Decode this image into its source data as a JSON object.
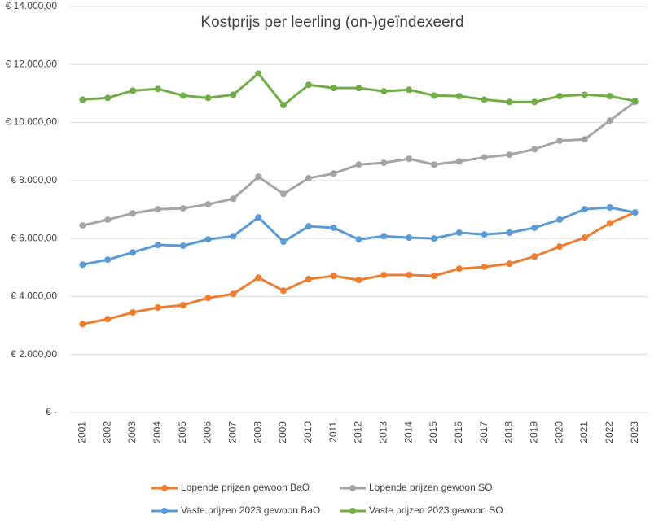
{
  "chart_data": {
    "type": "line",
    "title": "Kostprijs per leerling (on-)geïndexeerd",
    "categories": [
      "2001",
      "2002",
      "2003",
      "2004",
      "2005",
      "2006",
      "2007",
      "2008",
      "2009",
      "2010",
      "2011",
      "2012",
      "2013",
      "2014",
      "2015",
      "2016",
      "2017",
      "2018",
      "2019",
      "2020",
      "2021",
      "2022",
      "2023"
    ],
    "series": [
      {
        "name": "Lopende prijzen gewoon BaO",
        "color": "#ed7d31",
        "values": [
          3050,
          3220,
          3450,
          3620,
          3700,
          3950,
          4090,
          4650,
          4200,
          4600,
          4710,
          4570,
          4740,
          4740,
          4710,
          4960,
          5020,
          5130,
          5380,
          5720,
          6030,
          6530,
          6900
        ]
      },
      {
        "name": "Lopende prijzen gewoon SO",
        "color": "#a5a5a5",
        "values": [
          6450,
          6650,
          6870,
          7010,
          7040,
          7180,
          7370,
          8130,
          7540,
          8080,
          8240,
          8550,
          8610,
          8750,
          8550,
          8660,
          8800,
          8890,
          9080,
          9370,
          9420,
          10070,
          10710
        ]
      },
      {
        "name": "Vaste prijzen 2023 gewoon BaO",
        "color": "#5b9bd5",
        "values": [
          5100,
          5270,
          5520,
          5780,
          5750,
          5970,
          6080,
          6730,
          5890,
          6420,
          6370,
          5970,
          6080,
          6030,
          6000,
          6200,
          6140,
          6200,
          6370,
          6650,
          7010,
          7070,
          6900
        ]
      },
      {
        "name": "Vaste prijzen 2023 gewoon SO",
        "color": "#70ad47",
        "values": [
          10790,
          10850,
          11100,
          11160,
          10930,
          10850,
          10960,
          11690,
          10600,
          11300,
          11190,
          11190,
          11080,
          11130,
          10930,
          10910,
          10790,
          10710,
          10710,
          10910,
          10960,
          10910,
          10740
        ]
      }
    ],
    "ylim": [
      0,
      14000
    ],
    "yticks": [
      {
        "value": 0,
        "label": "€ -"
      },
      {
        "value": 2000,
        "label": "€ 2.000,00"
      },
      {
        "value": 4000,
        "label": "€ 4.000,00"
      },
      {
        "value": 6000,
        "label": "€ 6.000,00"
      },
      {
        "value": 8000,
        "label": "€ 8.000,00"
      },
      {
        "value": 10000,
        "label": "€ 10.000,00"
      },
      {
        "value": 12000,
        "label": "€ 12.000,00"
      },
      {
        "value": 14000,
        "label": "€ 14.000,00"
      }
    ],
    "grid": true
  }
}
